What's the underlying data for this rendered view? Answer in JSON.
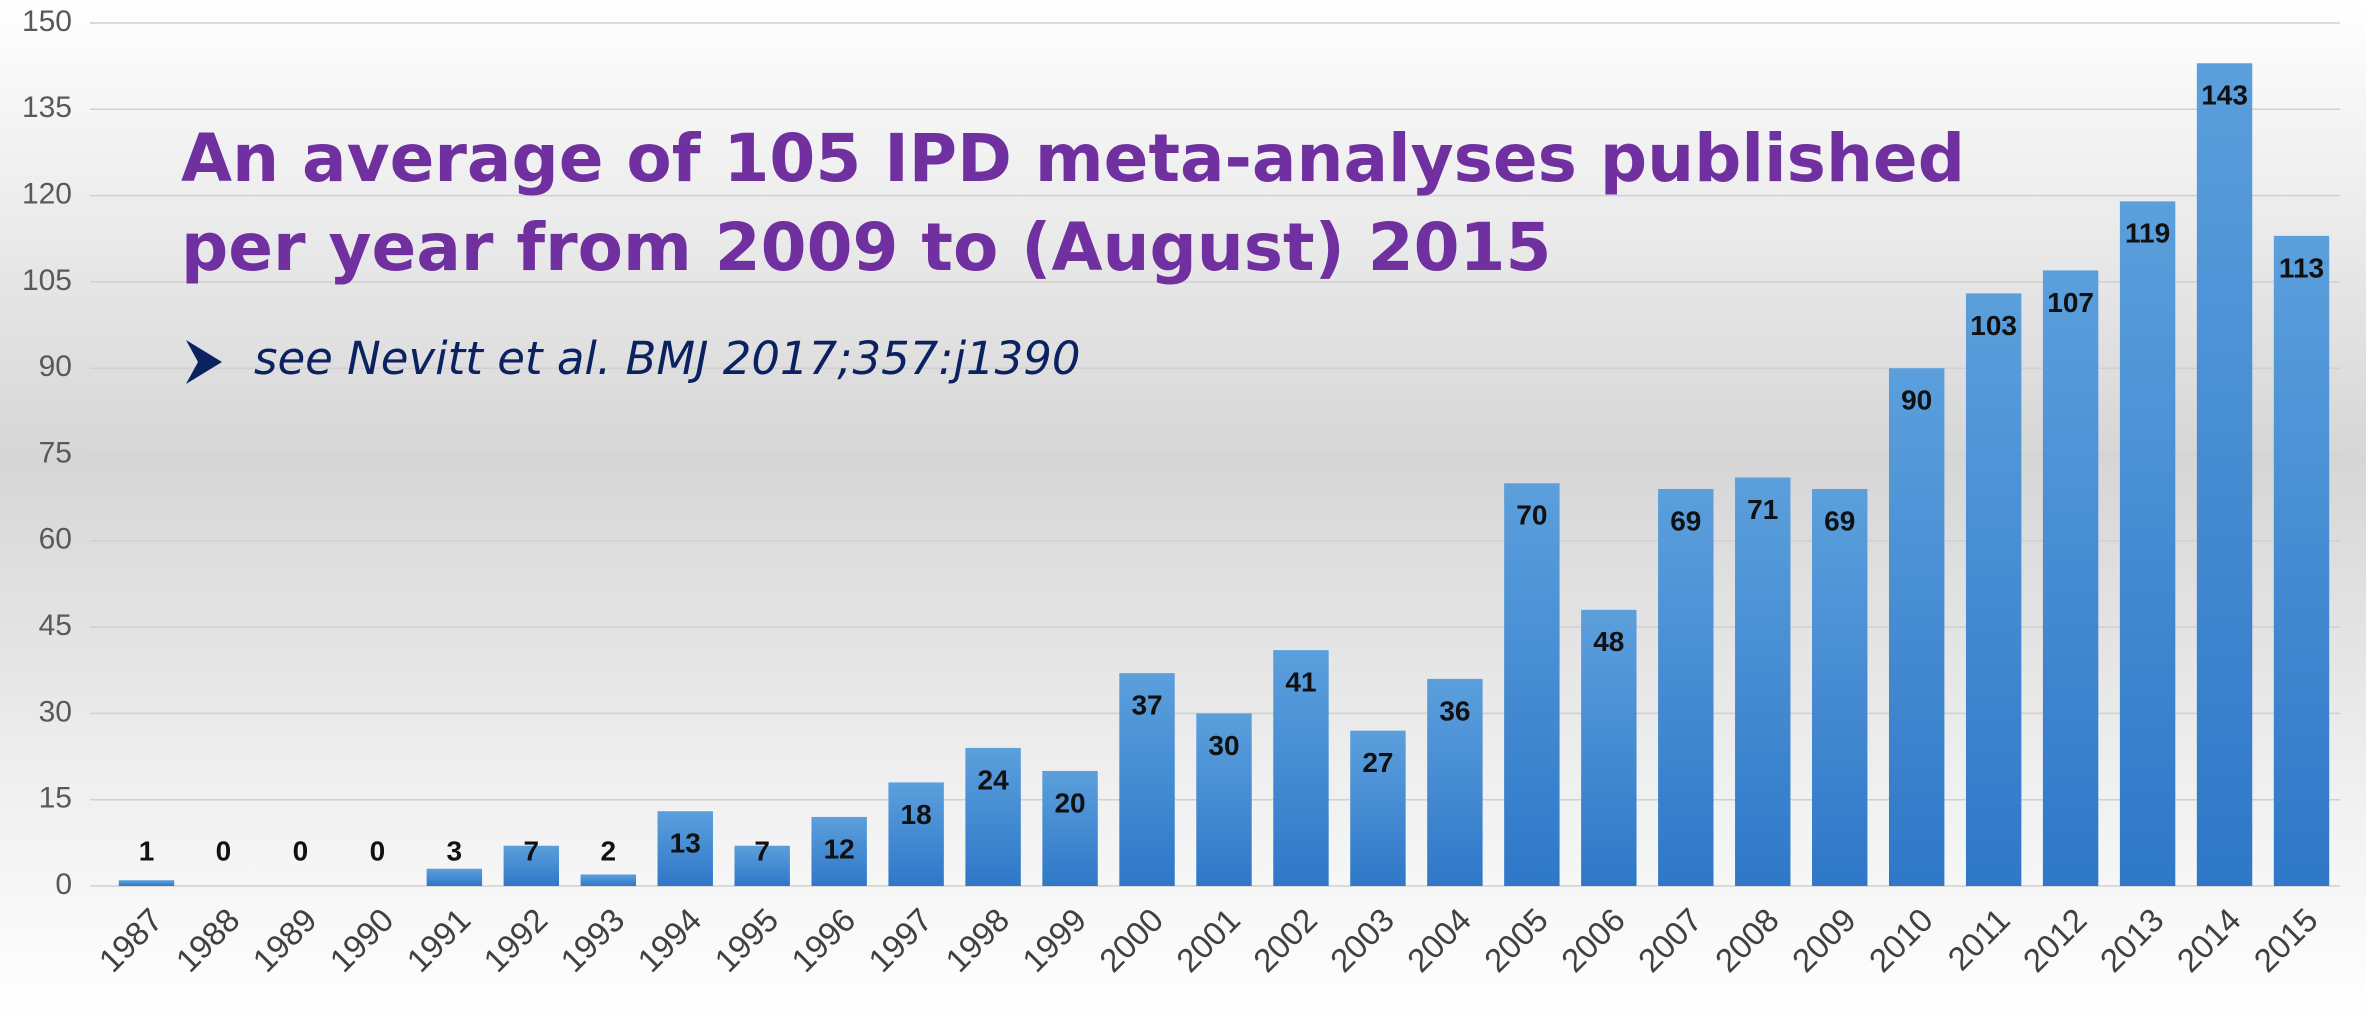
{
  "chart_data": {
    "type": "bar",
    "annotation": [
      "An average of 105 IPD meta-analyses published",
      "per year from 2009 to (August) 2015"
    ],
    "subtitle": "see Nevitt et al. BMJ 2017;357:j1390",
    "categories": [
      "1987",
      "1988",
      "1989",
      "1990",
      "1991",
      "1992",
      "1993",
      "1994",
      "1995",
      "1996",
      "1997",
      "1998",
      "1999",
      "2000",
      "2001",
      "2002",
      "2003",
      "2004",
      "2005",
      "2006",
      "2007",
      "2008",
      "2009",
      "2010",
      "2011",
      "2012",
      "2013",
      "2014",
      "2015"
    ],
    "values": [
      1,
      0,
      0,
      0,
      3,
      7,
      2,
      13,
      7,
      12,
      18,
      24,
      20,
      37,
      30,
      41,
      27,
      36,
      70,
      48,
      69,
      71,
      69,
      90,
      103,
      107,
      119,
      143,
      113
    ],
    "color": "#4a8fd6",
    "ylim": [
      0,
      150
    ],
    "yticks": [
      0,
      15,
      30,
      45,
      60,
      75,
      90,
      105,
      120,
      135,
      150
    ],
    "grid": true
  }
}
